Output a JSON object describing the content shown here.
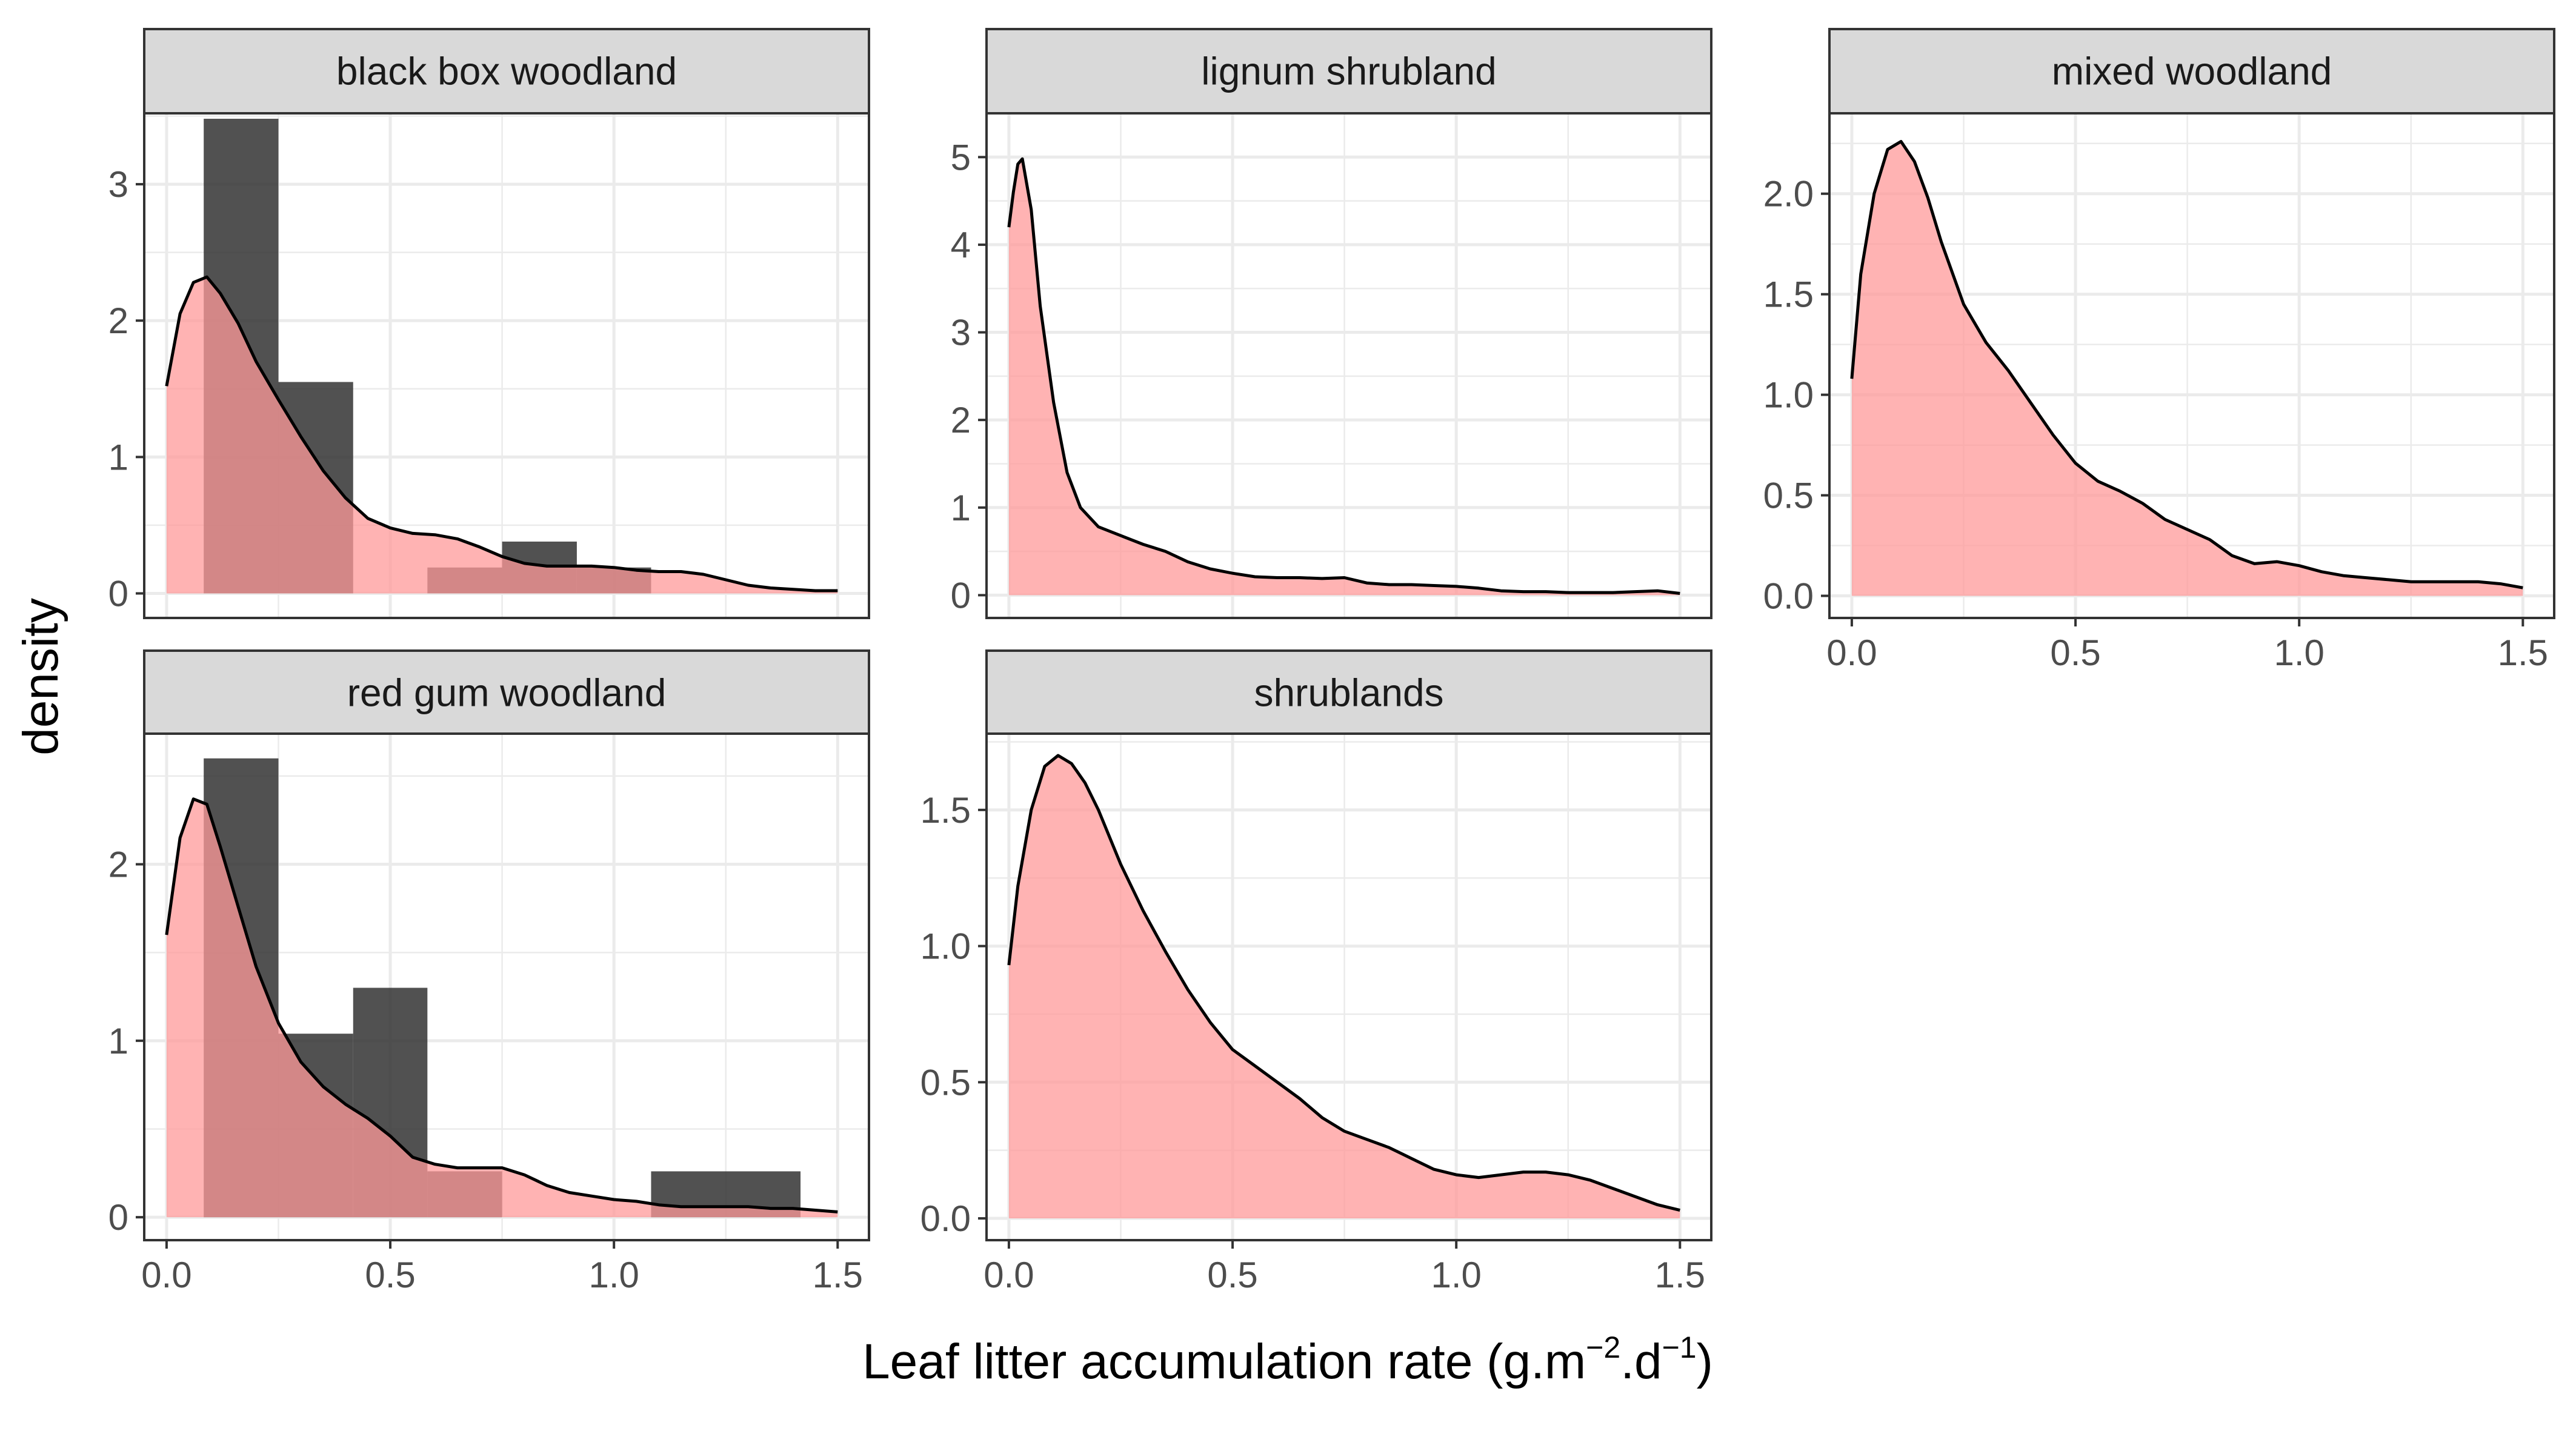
{
  "chart_data": {
    "type": "area",
    "ylabel": "density",
    "xlabel": {
      "main": "Leaf litter accumulation rate ",
      "unit_open": "(g.m",
      "sup1": "−2",
      "mid": ".d",
      "sup2": "−1",
      "unit_close": ")"
    },
    "colors": {
      "density_fill": "#FF9999",
      "density_line": "#000000",
      "histogram": "#333333",
      "strip_bg": "#D9D9D9",
      "grid": "#EBEBEB",
      "border": "#333333"
    },
    "xlim": [
      -0.05,
      1.57
    ],
    "x_ticks": [
      0.0,
      0.5,
      1.0,
      1.5
    ],
    "x_tick_labels": [
      "0.0",
      "0.5",
      "1.0",
      "1.5"
    ],
    "panels": [
      {
        "title": "black box woodland",
        "ylim": [
          -0.18,
          3.52
        ],
        "y_ticks": [
          0,
          1,
          2,
          3
        ],
        "y_tick_labels": [
          "0",
          "1",
          "2",
          "3"
        ],
        "show_x_axis": false,
        "histogram": [
          {
            "x0": 0.083,
            "x1": 0.25,
            "y": 3.48
          },
          {
            "x0": 0.25,
            "x1": 0.417,
            "y": 1.55
          },
          {
            "x0": 0.583,
            "x1": 0.75,
            "y": 0.19
          },
          {
            "x0": 0.75,
            "x1": 0.917,
            "y": 0.38
          },
          {
            "x0": 0.917,
            "x1": 1.083,
            "y": 0.19
          }
        ],
        "density": {
          "x": [
            0.0,
            0.03,
            0.06,
            0.09,
            0.12,
            0.16,
            0.2,
            0.25,
            0.3,
            0.35,
            0.4,
            0.45,
            0.5,
            0.55,
            0.6,
            0.65,
            0.7,
            0.75,
            0.8,
            0.85,
            0.9,
            0.95,
            1.0,
            1.05,
            1.1,
            1.15,
            1.2,
            1.25,
            1.3,
            1.35,
            1.4,
            1.45,
            1.5
          ],
          "y": [
            1.52,
            2.05,
            2.28,
            2.32,
            2.2,
            1.98,
            1.7,
            1.42,
            1.15,
            0.9,
            0.7,
            0.55,
            0.48,
            0.44,
            0.43,
            0.4,
            0.34,
            0.27,
            0.22,
            0.2,
            0.2,
            0.2,
            0.19,
            0.17,
            0.16,
            0.16,
            0.14,
            0.1,
            0.06,
            0.04,
            0.03,
            0.02,
            0.02
          ]
        }
      },
      {
        "title": "lignum shrubland",
        "ylim": [
          -0.26,
          5.5
        ],
        "y_ticks": [
          0,
          1,
          2,
          3,
          4,
          5
        ],
        "y_tick_labels": [
          "0",
          "1",
          "2",
          "3",
          "4",
          "5"
        ],
        "show_x_axis": false,
        "histogram": [],
        "density": {
          "x": [
            0.0,
            0.01,
            0.02,
            0.03,
            0.05,
            0.07,
            0.1,
            0.13,
            0.16,
            0.2,
            0.25,
            0.3,
            0.35,
            0.4,
            0.45,
            0.5,
            0.55,
            0.6,
            0.65,
            0.7,
            0.75,
            0.8,
            0.85,
            0.9,
            0.95,
            1.0,
            1.05,
            1.1,
            1.15,
            1.2,
            1.25,
            1.3,
            1.35,
            1.4,
            1.45,
            1.5
          ],
          "y": [
            4.2,
            4.6,
            4.92,
            4.98,
            4.4,
            3.3,
            2.2,
            1.4,
            1.0,
            0.78,
            0.68,
            0.58,
            0.5,
            0.38,
            0.3,
            0.25,
            0.21,
            0.2,
            0.2,
            0.19,
            0.2,
            0.14,
            0.12,
            0.12,
            0.11,
            0.1,
            0.08,
            0.05,
            0.04,
            0.04,
            0.03,
            0.03,
            0.03,
            0.04,
            0.05,
            0.02
          ]
        }
      },
      {
        "title": "mixed woodland",
        "ylim": [
          -0.11,
          2.4
        ],
        "y_ticks": [
          0.0,
          0.5,
          1.0,
          1.5,
          2.0
        ],
        "y_tick_labels": [
          "0.0",
          "0.5",
          "1.0",
          "1.5",
          "2.0"
        ],
        "show_x_axis": true,
        "histogram": [],
        "density": {
          "x": [
            0.0,
            0.02,
            0.05,
            0.08,
            0.11,
            0.14,
            0.17,
            0.2,
            0.25,
            0.3,
            0.35,
            0.4,
            0.45,
            0.5,
            0.55,
            0.6,
            0.65,
            0.7,
            0.75,
            0.8,
            0.85,
            0.9,
            0.95,
            1.0,
            1.05,
            1.1,
            1.15,
            1.2,
            1.25,
            1.3,
            1.35,
            1.4,
            1.45,
            1.5
          ],
          "y": [
            1.08,
            1.6,
            2.0,
            2.22,
            2.26,
            2.16,
            1.98,
            1.76,
            1.45,
            1.26,
            1.12,
            0.96,
            0.8,
            0.66,
            0.57,
            0.52,
            0.46,
            0.38,
            0.33,
            0.28,
            0.2,
            0.16,
            0.17,
            0.15,
            0.12,
            0.1,
            0.09,
            0.08,
            0.07,
            0.07,
            0.07,
            0.07,
            0.06,
            0.04
          ]
        }
      },
      {
        "title": "red gum woodland",
        "ylim": [
          -0.13,
          2.74
        ],
        "y_ticks": [
          0,
          1,
          2
        ],
        "y_tick_labels": [
          "0",
          "1",
          "2"
        ],
        "show_x_axis": true,
        "histogram": [
          {
            "x0": 0.083,
            "x1": 0.25,
            "y": 2.6
          },
          {
            "x0": 0.25,
            "x1": 0.417,
            "y": 1.04
          },
          {
            "x0": 0.417,
            "x1": 0.583,
            "y": 1.3
          },
          {
            "x0": 0.583,
            "x1": 0.75,
            "y": 0.26
          },
          {
            "x0": 1.083,
            "x1": 1.417,
            "y": 0.26
          }
        ],
        "density": {
          "x": [
            0.0,
            0.03,
            0.06,
            0.09,
            0.12,
            0.16,
            0.2,
            0.25,
            0.3,
            0.35,
            0.4,
            0.45,
            0.5,
            0.55,
            0.6,
            0.65,
            0.7,
            0.75,
            0.8,
            0.85,
            0.9,
            0.95,
            1.0,
            1.05,
            1.1,
            1.15,
            1.2,
            1.25,
            1.3,
            1.35,
            1.4,
            1.45,
            1.5
          ],
          "y": [
            1.6,
            2.15,
            2.37,
            2.34,
            2.1,
            1.76,
            1.42,
            1.1,
            0.88,
            0.74,
            0.64,
            0.56,
            0.46,
            0.34,
            0.3,
            0.28,
            0.28,
            0.28,
            0.24,
            0.18,
            0.14,
            0.12,
            0.1,
            0.09,
            0.07,
            0.06,
            0.06,
            0.06,
            0.06,
            0.05,
            0.05,
            0.04,
            0.03
          ]
        }
      },
      {
        "title": "shrublands",
        "ylim": [
          -0.08,
          1.78
        ],
        "y_ticks": [
          0.0,
          0.5,
          1.0,
          1.5
        ],
        "y_tick_labels": [
          "0.0",
          "0.5",
          "1.0",
          "1.5"
        ],
        "show_x_axis": true,
        "histogram": [],
        "density": {
          "x": [
            0.0,
            0.02,
            0.05,
            0.08,
            0.11,
            0.14,
            0.17,
            0.2,
            0.25,
            0.3,
            0.35,
            0.4,
            0.45,
            0.5,
            0.55,
            0.6,
            0.65,
            0.7,
            0.75,
            0.8,
            0.85,
            0.9,
            0.95,
            1.0,
            1.05,
            1.1,
            1.15,
            1.2,
            1.25,
            1.3,
            1.35,
            1.4,
            1.45,
            1.5
          ],
          "y": [
            0.93,
            1.22,
            1.5,
            1.66,
            1.7,
            1.67,
            1.6,
            1.5,
            1.3,
            1.13,
            0.98,
            0.84,
            0.72,
            0.62,
            0.56,
            0.5,
            0.44,
            0.37,
            0.32,
            0.29,
            0.26,
            0.22,
            0.18,
            0.16,
            0.15,
            0.16,
            0.17,
            0.17,
            0.16,
            0.14,
            0.11,
            0.08,
            0.05,
            0.03
          ]
        }
      }
    ]
  }
}
